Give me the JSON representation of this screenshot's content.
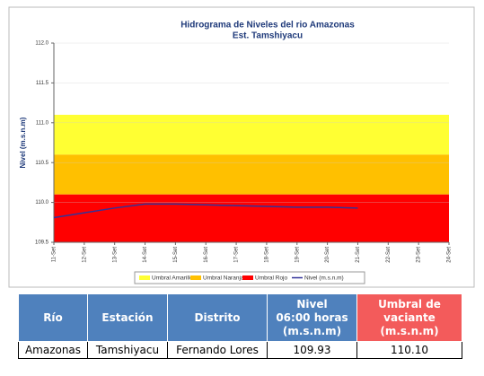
{
  "chart_data": {
    "type": "line",
    "title": "Hidrograma de Niveles del rio Amazonas",
    "subtitle": "Est. Tamshiyacu",
    "y_label": "Nivel (m.s.n.m)",
    "categories": [
      "11-Set",
      "12-Set",
      "13-Set",
      "14-Set",
      "15-Set",
      "16-Set",
      "17-Set",
      "18-Set",
      "19-Set",
      "20-Set",
      "21-Set",
      "22-Set",
      "23-Set",
      "24-Set"
    ],
    "thresholds": [
      {
        "name": "Umbral Amarillo",
        "color": "#ffff33",
        "from": 110.6,
        "to": 111.1
      },
      {
        "name": "Umbral Naranja",
        "color": "#ffc000",
        "from": 110.1,
        "to": 110.6
      },
      {
        "name": "Umbral Rojo",
        "color": "#ff0000",
        "from": 109.5,
        "to": 110.1
      }
    ],
    "series": [
      {
        "name": "Nivel (m.s.n.m)",
        "color": "#333399",
        "values": [
          109.81,
          109.87,
          109.93,
          109.98,
          109.98,
          109.97,
          109.96,
          109.95,
          109.94,
          109.94,
          109.93,
          null,
          null,
          null
        ]
      }
    ],
    "ylim": [
      109.5,
      112.0
    ],
    "yticks": [
      109.5,
      {
        "value": 110.0,
        "label": "110.0"
      },
      110.5,
      {
        "value": 111.0,
        "label": "111.0"
      },
      111.5,
      {
        "value": 112.0,
        "label": "112.0"
      }
    ],
    "grid": true
  },
  "table": {
    "headers": [
      "Río",
      "Estación",
      "Distrito",
      "Nivel\n06:00 horas\n(m.s.n.m)",
      "Umbral de\nvaciante\n(m.s.n.m)"
    ],
    "rows": [
      [
        "Amazonas",
        "Tamshiyacu",
        "Fernando Lores",
        "109.93",
        "110.10"
      ]
    ]
  }
}
